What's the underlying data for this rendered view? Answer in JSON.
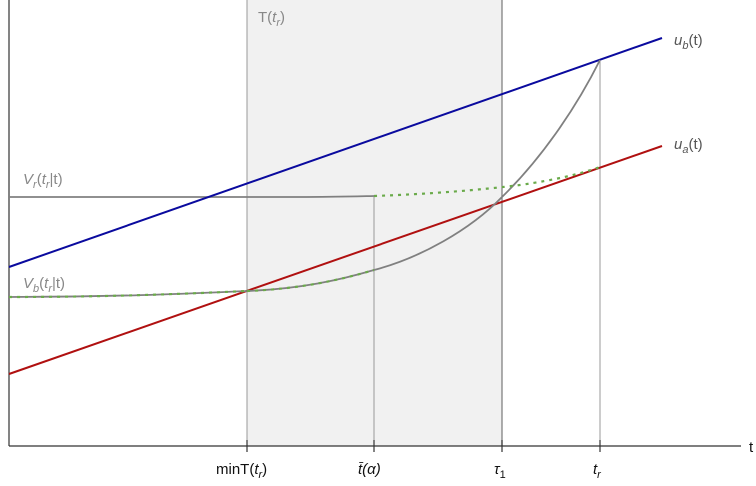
{
  "region": {
    "label_main": "T(",
    "label_sub": "r",
    "label_var": "t",
    "label_close": ")"
  },
  "x_axis": {
    "axis_label": "t",
    "ticks": [
      {
        "main": "minT(",
        "var": "t",
        "sub": "r",
        "close": ")"
      },
      {
        "main": "t̄",
        "paren": "(α)"
      },
      {
        "main": "τ",
        "sub": "1"
      },
      {
        "main": "t",
        "sub": "r"
      }
    ]
  },
  "lines": {
    "ub": {
      "var": "u",
      "sub": "b",
      "arg": "(t)",
      "color": "#0a0a9e"
    },
    "ua": {
      "var": "u",
      "sub": "a",
      "arg": "(t)",
      "color": "#b01010"
    }
  },
  "curves": {
    "vr": {
      "var": "V",
      "sub": "r",
      "arg_open": "(",
      "arg_var": "t",
      "arg_sub": "r",
      "arg_close": "|t)"
    },
    "vb": {
      "var": "V",
      "sub": "b",
      "arg_open": "(",
      "arg_var": "t",
      "arg_sub": "r",
      "arg_close": "|t)"
    }
  },
  "colors": {
    "curve_gray": "#808080",
    "dotted_overlay": "#6aaa4a",
    "shade": "#f1f1f1",
    "guide": "#999999"
  }
}
